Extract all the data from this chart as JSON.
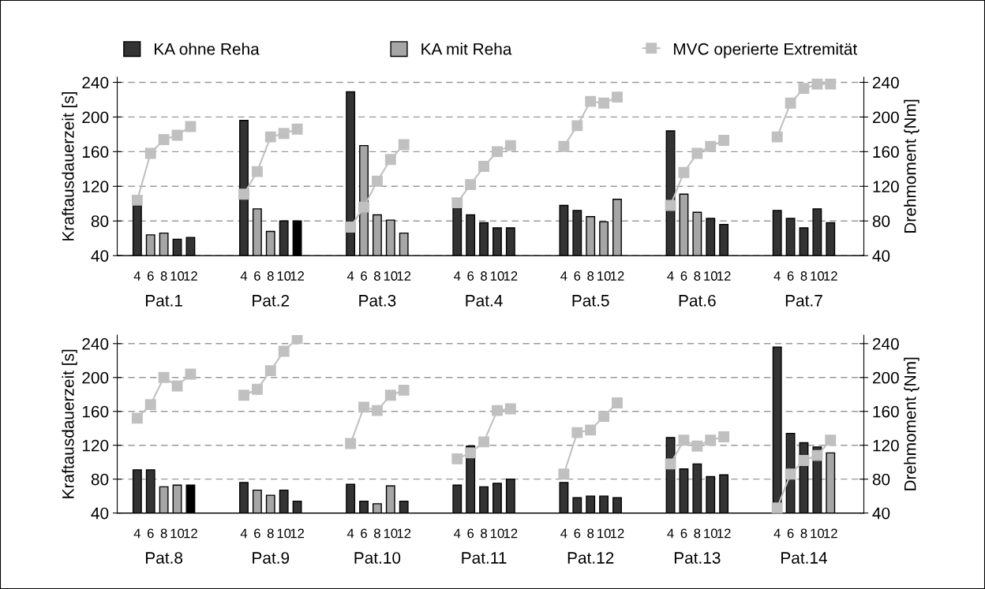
{
  "chart_data": [
    {
      "type": "bar",
      "ylabel": "Kraftausdauerzeit [s]",
      "y2label": "Drehmoment {Nm]",
      "categories": [
        null,
        "4",
        "6",
        "8",
        "10",
        "12",
        null,
        null,
        null,
        "4",
        "6",
        "8",
        "10",
        "12",
        null,
        null,
        null,
        "4",
        "6",
        "8",
        "10",
        "12",
        null,
        null,
        null,
        "4",
        "6",
        "8",
        "10",
        "12",
        null,
        null,
        null,
        "4",
        "6",
        "8",
        "10",
        "12",
        null,
        null,
        null,
        "4",
        "6",
        "8",
        "10",
        "12",
        null,
        null,
        null,
        "4",
        "6",
        "8",
        "10",
        "12",
        null,
        null
      ],
      "series": [
        {
          "name": "KA ohne Reha",
          "color": "#333333",
          "values": [
            null,
            98,
            null,
            null,
            59,
            61,
            null,
            null,
            null,
            196,
            null,
            null,
            80,
            null,
            null,
            null,
            null,
            229,
            null,
            null,
            null,
            null,
            null,
            null,
            null,
            97,
            87,
            78,
            72,
            72,
            null,
            null,
            null,
            98,
            92,
            null,
            null,
            null,
            null,
            null,
            null,
            184,
            null,
            null,
            83,
            76,
            null,
            null,
            null,
            92,
            83,
            72,
            94,
            78,
            null,
            null
          ]
        },
        {
          "name": "KA mit Reha",
          "color": "#a6a6a6",
          "values": [
            null,
            null,
            64,
            66,
            null,
            null,
            null,
            null,
            null,
            null,
            94,
            68,
            null,
            null,
            null,
            null,
            null,
            null,
            167,
            87,
            81,
            66,
            null,
            null,
            null,
            null,
            null,
            null,
            null,
            null,
            null,
            null,
            null,
            null,
            null,
            85,
            79,
            105,
            null,
            null,
            null,
            null,
            111,
            90,
            null,
            null,
            null,
            null,
            null,
            null,
            null,
            null,
            null,
            null,
            null,
            null
          ]
        },
        {
          "color": "#000000",
          "values": [
            null,
            null,
            null,
            null,
            null,
            null,
            null,
            null,
            null,
            null,
            null,
            null,
            null,
            80,
            null,
            null,
            null,
            null,
            null,
            null,
            null,
            null,
            null,
            null,
            null,
            null,
            null,
            null,
            null,
            null,
            null,
            null,
            null,
            null,
            null,
            null,
            null,
            null,
            null,
            null,
            null,
            null,
            null,
            null,
            null,
            null,
            null,
            null,
            null,
            null,
            null,
            null,
            null,
            null,
            null,
            null
          ]
        },
        {
          "name": "MVC operierte Extremität",
          "type": "line",
          "axis": "y2",
          "color": "#c0c0c0",
          "marker": "square",
          "values": [
            null,
            104,
            158,
            174,
            179,
            189,
            null,
            null,
            null,
            111,
            137,
            177,
            181,
            186,
            null,
            null,
            null,
            73,
            96,
            126,
            151,
            168,
            null,
            null,
            null,
            101,
            122,
            143,
            160,
            167,
            null,
            null,
            null,
            166,
            190,
            218,
            216,
            223,
            null,
            null,
            null,
            98,
            136,
            158,
            166,
            173,
            null,
            null,
            null,
            177,
            216,
            233,
            238,
            238,
            null,
            null
          ]
        }
      ],
      "ylim": [
        40,
        246
      ],
      "yticks": [
        40,
        80,
        120,
        160,
        200,
        240
      ],
      "y2lim": [
        40,
        246
      ],
      "y2ticks": [
        40,
        80,
        120,
        160,
        200,
        240
      ],
      "grid": "y",
      "legend": "top",
      "annotations": [
        "Pat.1",
        "Pat.2",
        "Pat.3",
        "Pat.4",
        "Pat.5",
        "Pat.6",
        "Pat.7"
      ]
    },
    {
      "type": "bar",
      "ylabel": "Kraftausdauerzeit [s]",
      "y2label": "Drehmoment {Nm]",
      "categories": [
        null,
        "4",
        "6",
        "8",
        "10",
        "12",
        null,
        null,
        null,
        "4",
        "6",
        "8",
        "10",
        "12",
        null,
        null,
        null,
        "4",
        "6",
        "8",
        "10",
        "12",
        null,
        null,
        null,
        "4",
        "6",
        "8",
        "10",
        "12",
        null,
        null,
        null,
        "4",
        "6",
        "8",
        "10",
        "12",
        null,
        null,
        null,
        "4",
        "6",
        "8",
        "10",
        "12",
        null,
        null,
        null,
        "4",
        "6",
        "8",
        "10",
        "12",
        null,
        null
      ],
      "series": [
        {
          "color": "#333333",
          "values": [
            null,
            91,
            91,
            null,
            null,
            null,
            null,
            null,
            null,
            76,
            null,
            null,
            67,
            54,
            null,
            null,
            null,
            74,
            54,
            null,
            null,
            54,
            null,
            null,
            null,
            73,
            119,
            71,
            75,
            80,
            null,
            null,
            null,
            76,
            58,
            60,
            60,
            58,
            null,
            null,
            null,
            129,
            92,
            98,
            83,
            85,
            null,
            null,
            null,
            236,
            134,
            123,
            118,
            null,
            null,
            null
          ]
        },
        {
          "color": "#a6a6a6",
          "values": [
            null,
            null,
            null,
            71,
            73,
            null,
            null,
            null,
            null,
            null,
            67,
            61,
            null,
            null,
            null,
            null,
            null,
            null,
            null,
            51,
            72,
            null,
            null,
            null,
            null,
            null,
            null,
            null,
            null,
            null,
            null,
            null,
            null,
            null,
            null,
            null,
            null,
            null,
            null,
            null,
            null,
            null,
            null,
            null,
            null,
            null,
            null,
            null,
            null,
            null,
            null,
            null,
            null,
            111,
            null,
            null
          ]
        },
        {
          "color": "#000000",
          "values": [
            null,
            null,
            null,
            null,
            null,
            73,
            null,
            null,
            null,
            null,
            null,
            null,
            null,
            null,
            null,
            null,
            null,
            null,
            null,
            null,
            null,
            null,
            null,
            null,
            null,
            null,
            null,
            null,
            null,
            null,
            null,
            null,
            null,
            null,
            null,
            null,
            null,
            null,
            null,
            null,
            null,
            null,
            null,
            null,
            null,
            null,
            null,
            null,
            null,
            null,
            null,
            null,
            null,
            null,
            null,
            null
          ]
        },
        {
          "type": "line",
          "axis": "y2",
          "color": "#c0c0c0",
          "marker": "square",
          "values": [
            null,
            152,
            168,
            200,
            190,
            204,
            null,
            null,
            null,
            179,
            186,
            208,
            231,
            246,
            null,
            null,
            null,
            122,
            165,
            161,
            179,
            185,
            null,
            null,
            null,
            104,
            111,
            124,
            161,
            163,
            null,
            null,
            null,
            86,
            135,
            138,
            154,
            170,
            null,
            null,
            null,
            98,
            126,
            119,
            126,
            130,
            null,
            null,
            null,
            46,
            86,
            102,
            108,
            126,
            null,
            null
          ]
        }
      ],
      "ylim": [
        40,
        250
      ],
      "yticks": [
        40,
        80,
        120,
        160,
        200,
        240
      ],
      "y2lim": [
        40,
        250
      ],
      "y2ticks": [
        40,
        80,
        120,
        160,
        200,
        240
      ],
      "grid": "y",
      "annotations": [
        "Pat.8",
        "Pat.9",
        "Pat.10",
        "Pat.11",
        "Pat.12",
        "Pat.13",
        "Pat.14"
      ]
    }
  ]
}
